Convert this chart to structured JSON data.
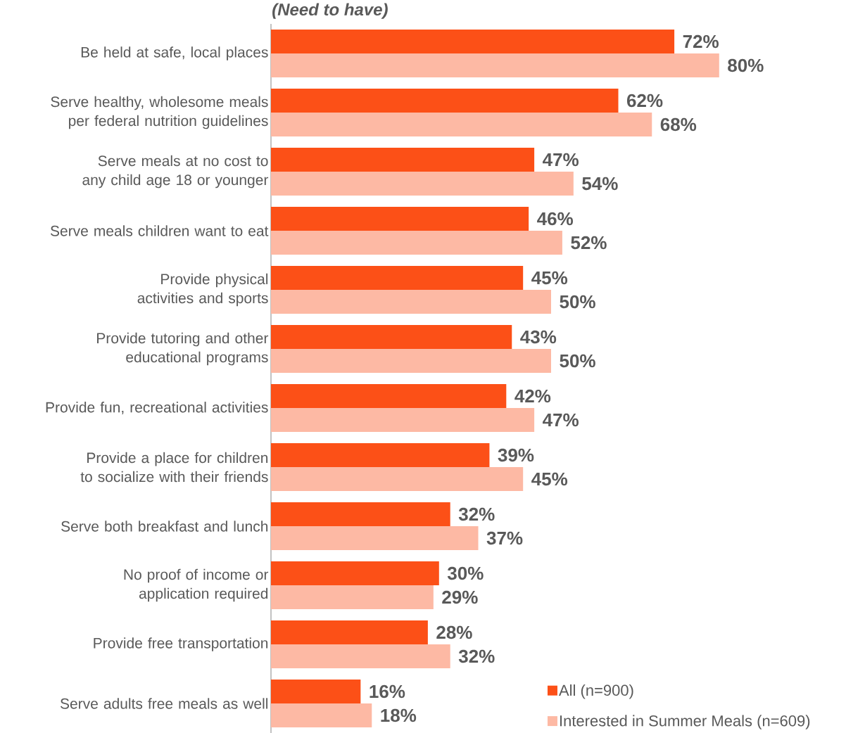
{
  "chart_data": {
    "type": "bar",
    "orientation": "horizontal",
    "subtitle": "(Need to have)",
    "categories": [
      "Be held at safe, local places",
      "Serve healthy, wholesome meals per federal nutrition guidelines",
      "Serve meals at no cost to any child age 18 or younger",
      "Serve meals children want to eat",
      "Provide physical activities and sports",
      "Provide tutoring and other educational programs",
      "Provide fun, recreational activities",
      "Provide a place for children to socialize with their friends",
      "Serve both breakfast and lunch",
      "No proof of income or application required",
      "Provide free transportation",
      "Serve adults free meals as well"
    ],
    "series": [
      {
        "name": "All (n=900)",
        "color": "#fc5017",
        "values": [
          72,
          62,
          47,
          46,
          45,
          43,
          42,
          39,
          32,
          30,
          28,
          16
        ],
        "value_labels": [
          "72%",
          "62%",
          "47%",
          "46%",
          "45%",
          "43%",
          "42%",
          "39%",
          "32%",
          "30%",
          "28%",
          "16%"
        ]
      },
      {
        "name": "Interested in Summer Meals (n=609)",
        "color": "#fdb9a4",
        "values": [
          80,
          68,
          54,
          52,
          50,
          50,
          47,
          45,
          37,
          29,
          32,
          18
        ],
        "value_labels": [
          "80%",
          "68%",
          "54%",
          "52%",
          "50%",
          "50%",
          "47%",
          "45%",
          "37%",
          "29%",
          "32%",
          "18%"
        ]
      }
    ],
    "legend": "bottom right"
  }
}
